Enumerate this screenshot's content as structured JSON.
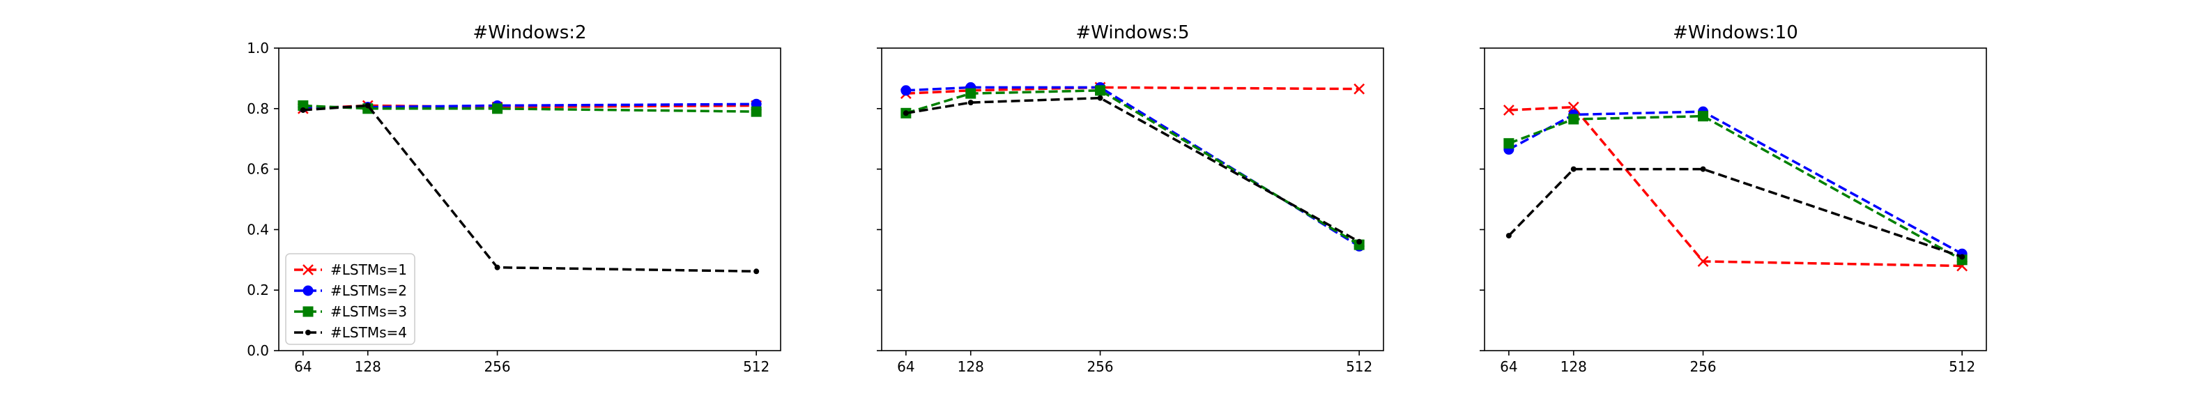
{
  "chart_data": [
    {
      "type": "line",
      "title": "#Windows:2",
      "xlabel": "",
      "ylabel": "",
      "x": [
        64,
        128,
        256,
        512
      ],
      "xlim": [
        40,
        536
      ],
      "ylim": [
        0.0,
        1.0
      ],
      "xticks": [
        "64",
        "128",
        "256",
        "512"
      ],
      "yticks": [
        "0.0",
        "0.2",
        "0.4",
        "0.6",
        "0.8",
        "1.0"
      ],
      "show_yticklabels": true,
      "legend": "lower-left",
      "grid": false,
      "series": [
        {
          "name": "#LSTMs=1",
          "values": [
            0.8,
            0.81,
            0.805,
            0.81
          ]
        },
        {
          "name": "#LSTMs=2",
          "values": [
            0.805,
            0.805,
            0.81,
            0.815
          ]
        },
        {
          "name": "#LSTMs=3",
          "values": [
            0.81,
            0.8,
            0.8,
            0.79
          ]
        },
        {
          "name": "#LSTMs=4",
          "values": [
            0.795,
            0.81,
            0.275,
            0.262
          ]
        }
      ]
    },
    {
      "type": "line",
      "title": "#Windows:5",
      "xlabel": "",
      "ylabel": "",
      "x": [
        64,
        128,
        256,
        512
      ],
      "xlim": [
        40,
        536
      ],
      "ylim": [
        0.0,
        1.0
      ],
      "xticks": [
        "64",
        "128",
        "256",
        "512"
      ],
      "yticks": [
        "0.0",
        "0.2",
        "0.4",
        "0.6",
        "0.8",
        "1.0"
      ],
      "show_yticklabels": false,
      "grid": false,
      "series": [
        {
          "name": "#LSTMs=1",
          "values": [
            0.85,
            0.86,
            0.87,
            0.865
          ]
        },
        {
          "name": "#LSTMs=2",
          "values": [
            0.86,
            0.87,
            0.87,
            0.345
          ]
        },
        {
          "name": "#LSTMs=3",
          "values": [
            0.785,
            0.85,
            0.86,
            0.35
          ]
        },
        {
          "name": "#LSTMs=4",
          "values": [
            0.785,
            0.82,
            0.835,
            0.36
          ]
        }
      ]
    },
    {
      "type": "line",
      "title": "#Windows:10",
      "xlabel": "",
      "ylabel": "",
      "x": [
        64,
        128,
        256,
        512
      ],
      "xlim": [
        40,
        536
      ],
      "ylim": [
        0.0,
        1.0
      ],
      "xticks": [
        "64",
        "128",
        "256",
        "512"
      ],
      "yticks": [
        "0.0",
        "0.2",
        "0.4",
        "0.6",
        "0.8",
        "1.0"
      ],
      "show_yticklabels": false,
      "grid": false,
      "series": [
        {
          "name": "#LSTMs=1",
          "values": [
            0.795,
            0.805,
            0.295,
            0.28
          ]
        },
        {
          "name": "#LSTMs=2",
          "values": [
            0.665,
            0.78,
            0.79,
            0.32
          ]
        },
        {
          "name": "#LSTMs=3",
          "values": [
            0.685,
            0.765,
            0.775,
            0.3
          ]
        },
        {
          "name": "#LSTMs=4",
          "values": [
            0.38,
            0.6,
            0.6,
            0.31
          ]
        }
      ]
    }
  ],
  "styles": [
    {
      "color": "#ff0000",
      "marker": "x-mark"
    },
    {
      "color": "#0000ff",
      "marker": "circle"
    },
    {
      "color": "#008000",
      "marker": "square"
    },
    {
      "color": "#000000",
      "marker": "dot"
    }
  ]
}
